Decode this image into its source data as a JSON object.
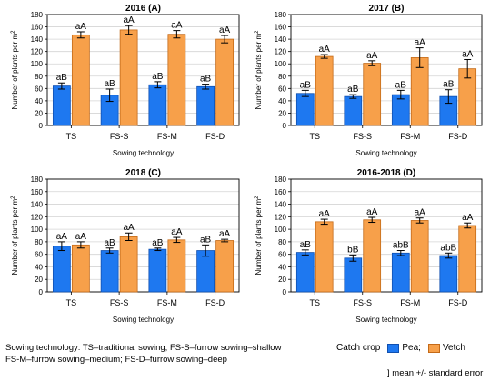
{
  "chart_data": [
    {
      "type": "bar",
      "title": "2016 (A)",
      "categories": [
        "TS",
        "FS-S",
        "FS-M",
        "FS-D"
      ],
      "xlabel": "Sowing technology",
      "ylabel": "Number of plants per m",
      "ylabel_sup": "2",
      "ylim": [
        0,
        180
      ],
      "yticks": [
        0,
        20,
        40,
        60,
        80,
        100,
        120,
        140,
        160,
        180
      ],
      "grid": true,
      "series": [
        {
          "name": "Pea",
          "color": "#1e78f0",
          "values": [
            64,
            49,
            66,
            63
          ],
          "errors": [
            5,
            10,
            5,
            4
          ],
          "labels": [
            "aB",
            "aB",
            "aB",
            "aB"
          ]
        },
        {
          "name": "Vetch",
          "color": "#f7a04a",
          "values": [
            147,
            155,
            148,
            140
          ],
          "errors": [
            5,
            7,
            6,
            6
          ],
          "labels": [
            "aA",
            "aA",
            "aA",
            "aA"
          ]
        }
      ]
    },
    {
      "type": "bar",
      "title": "2017 (B)",
      "categories": [
        "TS",
        "FS-S",
        "FS-M",
        "FS-D"
      ],
      "xlabel": "Sowing technology",
      "ylabel": "Number of plants per m",
      "ylabel_sup": "2",
      "ylim": [
        0,
        180
      ],
      "yticks": [
        0,
        20,
        40,
        60,
        80,
        100,
        120,
        140,
        160,
        180
      ],
      "grid": true,
      "series": [
        {
          "name": "Pea",
          "color": "#1e78f0",
          "values": [
            52,
            47,
            50,
            47
          ],
          "errors": [
            5,
            3,
            7,
            11
          ],
          "labels": [
            "aB",
            "aB",
            "aB",
            "aB"
          ]
        },
        {
          "name": "Vetch",
          "color": "#f7a04a",
          "values": [
            112,
            101,
            110,
            92
          ],
          "errors": [
            3,
            4,
            16,
            15
          ],
          "labels": [
            "aA",
            "aA",
            "aA",
            "aA"
          ]
        }
      ]
    },
    {
      "type": "bar",
      "title": "2018 (C)",
      "categories": [
        "TS",
        "FS-S",
        "FS-M",
        "FS-D"
      ],
      "xlabel": "Sowing technology",
      "ylabel": "Number of plants per m",
      "ylabel_sup": "2",
      "ylim": [
        0,
        180
      ],
      "yticks": [
        0,
        20,
        40,
        60,
        80,
        100,
        120,
        140,
        160,
        180
      ],
      "grid": true,
      "series": [
        {
          "name": "Pea",
          "color": "#1e78f0",
          "values": [
            73,
            66,
            68,
            66
          ],
          "errors": [
            7,
            4,
            2,
            9
          ],
          "labels": [
            "aA",
            "aB",
            "aB",
            "aB"
          ]
        },
        {
          "name": "Vetch",
          "color": "#f7a04a",
          "values": [
            75,
            88,
            83,
            82
          ],
          "errors": [
            5,
            6,
            4,
            2
          ],
          "labels": [
            "aA",
            "aA",
            "aA",
            "aA"
          ]
        }
      ]
    },
    {
      "type": "bar",
      "title": "2016-2018 (D)",
      "categories": [
        "TS",
        "FS-S",
        "FS-M",
        "FS-D"
      ],
      "xlabel": "Sowing technology",
      "ylabel": "Number of plants per m",
      "ylabel_sup": "2",
      "ylim": [
        0,
        180
      ],
      "yticks": [
        0,
        20,
        40,
        60,
        80,
        100,
        120,
        140,
        160,
        180
      ],
      "grid": true,
      "series": [
        {
          "name": "Pea",
          "color": "#1e78f0",
          "values": [
            63,
            54,
            62,
            58
          ],
          "errors": [
            4,
            5,
            4,
            4
          ],
          "labels": [
            "aB",
            "bB",
            "abB",
            "abB"
          ]
        },
        {
          "name": "Vetch",
          "color": "#f7a04a",
          "values": [
            112,
            115,
            114,
            106
          ],
          "errors": [
            4,
            4,
            4,
            4
          ],
          "labels": [
            "aA",
            "aA",
            "aA",
            "aA"
          ]
        }
      ]
    }
  ],
  "footer": {
    "note_line1": "Sowing technology: TS–traditional sowing; FS-S–furrow sowing–shallow",
    "note_line2": "FS-M–furrow sowing–medium; FS-D–furrow sowing–deep",
    "legend_title": "Catch crop",
    "legend_pea": "Pea;",
    "legend_vetch": "Vetch",
    "error_note": "] mean +/- standard error"
  }
}
